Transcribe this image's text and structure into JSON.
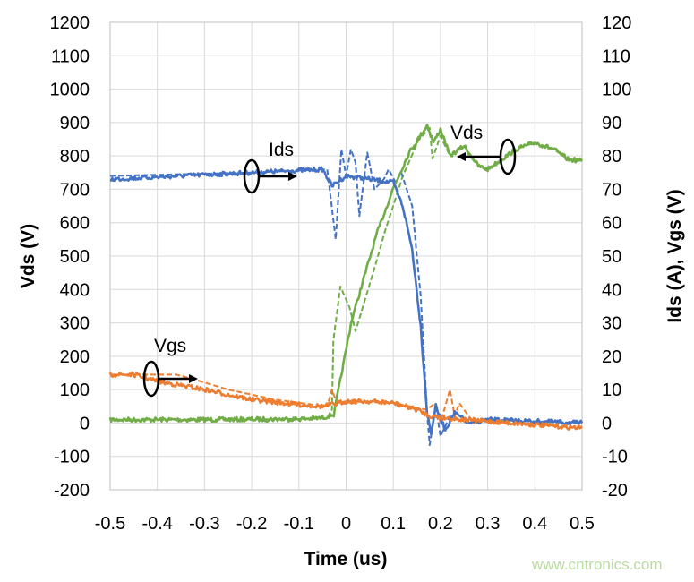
{
  "chart_data": {
    "type": "line",
    "title": "",
    "xlabel": "Time (us)",
    "ylabel": "Vds (V)",
    "y2label": "Ids (A), Vgs (V)",
    "xlim": [
      -0.5,
      0.5
    ],
    "ylim": [
      -200,
      1200
    ],
    "y2lim": [
      -20,
      120
    ],
    "grid": true,
    "legend": "none",
    "x_ticks": [
      "-0.5",
      "-0.4",
      "-0.3",
      "-0.2",
      "-0.1",
      "0",
      "0.1",
      "0.2",
      "0.3",
      "0.4",
      "0.5"
    ],
    "y_ticks": [
      "-200",
      "-100",
      "0",
      "100",
      "200",
      "300",
      "400",
      "500",
      "600",
      "700",
      "800",
      "900",
      "1000",
      "1100",
      "1200"
    ],
    "y2_ticks": [
      "-20",
      "-10",
      "0",
      "10",
      "20",
      "30",
      "40",
      "50",
      "60",
      "70",
      "80",
      "90",
      "100",
      "110",
      "120"
    ],
    "colors": {
      "Ids": "#4472C4",
      "Vgs": "#ED7D31",
      "Vds": "#70AD47"
    },
    "series": [
      {
        "name": "Vds",
        "axis": "left",
        "style": "solid",
        "color": "#70AD47",
        "x": [
          -0.5,
          -0.3,
          -0.1,
          -0.05,
          -0.03,
          -0.026,
          0.012,
          0.064,
          0.1,
          0.134,
          0.172,
          0.185,
          0.2,
          0.22,
          0.25,
          0.28,
          0.3,
          0.33,
          0.36,
          0.4,
          0.44,
          0.47,
          0.5
        ],
        "y": [
          10,
          10,
          12,
          15,
          25,
          25,
          309,
          562,
          704,
          811,
          892,
          840,
          880,
          800,
          830,
          770,
          760,
          790,
          820,
          840,
          820,
          790,
          785
        ]
      },
      {
        "name": "Vds",
        "axis": "left",
        "style": "dashed",
        "color": "#70AD47",
        "x": [
          -0.5,
          -0.3,
          -0.1,
          -0.04,
          -0.03,
          -0.027,
          -0.012,
          0.007,
          0.02,
          0.058,
          0.083,
          0.12,
          0.153,
          0.177,
          0.183,
          0.2,
          0.22,
          0.25,
          0.28,
          0.3,
          0.33,
          0.36,
          0.4,
          0.44,
          0.47,
          0.5
        ],
        "y": [
          10,
          10,
          12,
          15,
          40,
          248,
          409,
          347,
          275,
          454,
          577,
          739,
          846,
          884,
          792,
          860,
          800,
          830,
          770,
          760,
          790,
          820,
          840,
          820,
          790,
          785
        ]
      },
      {
        "name": "Ids",
        "axis": "right",
        "style": "solid",
        "color": "#4472C4",
        "x": [
          -0.5,
          -0.2,
          -0.05,
          -0.03,
          0.0,
          0.05,
          0.1,
          0.12,
          0.14,
          0.158,
          0.172,
          0.18,
          0.19,
          0.21,
          0.23,
          0.26,
          0.3,
          0.5
        ],
        "y": [
          73,
          75,
          76,
          71,
          74,
          73,
          72,
          65,
          52,
          29,
          2.5,
          -3,
          5,
          -2,
          3,
          0,
          1,
          0
        ]
      },
      {
        "name": "Ids",
        "axis": "right",
        "style": "dashed",
        "color": "#4472C4",
        "x": [
          -0.5,
          -0.2,
          -0.04,
          -0.022,
          -0.01,
          0.0,
          0.01,
          0.02,
          0.028,
          0.045,
          0.06,
          0.08,
          0.09,
          0.105,
          0.117,
          0.14,
          0.158,
          0.172,
          0.177,
          0.19,
          0.2,
          0.22,
          0.26,
          0.3,
          0.5
        ],
        "y": [
          74,
          75,
          76,
          55,
          82,
          74,
          82,
          78,
          62,
          81,
          70,
          73,
          76,
          72,
          75,
          65,
          38,
          2.5,
          -6.6,
          5,
          -4,
          2,
          0,
          1,
          0
        ]
      },
      {
        "name": "Vgs",
        "axis": "right",
        "style": "solid",
        "color": "#ED7D31",
        "x": [
          -0.5,
          -0.45,
          -0.4,
          -0.3,
          -0.2,
          -0.1,
          -0.05,
          -0.03,
          0.0,
          0.05,
          0.1,
          0.15,
          0.18,
          0.25,
          0.3,
          0.4,
          0.5
        ],
        "y": [
          14.5,
          14.5,
          12.5,
          10,
          7,
          5.5,
          5,
          5.5,
          6.5,
          6.5,
          6,
          4,
          2,
          1,
          0.5,
          -0.5,
          -1.5
        ]
      },
      {
        "name": "Vgs",
        "axis": "right",
        "style": "dashed",
        "color": "#ED7D31",
        "x": [
          -0.5,
          -0.45,
          -0.36,
          -0.32,
          -0.25,
          -0.15,
          -0.07,
          -0.04,
          -0.03,
          -0.02,
          0.0,
          0.1,
          0.17,
          0.19,
          0.2,
          0.22,
          0.23,
          0.24,
          0.27,
          0.3,
          0.45,
          0.5
        ],
        "y": [
          14.5,
          14.5,
          14.5,
          13,
          10,
          7,
          5.5,
          5,
          10,
          6,
          6.5,
          6,
          4,
          6,
          0,
          10,
          2,
          6,
          0,
          1,
          -1,
          -1.5
        ]
      }
    ],
    "annotations": {
      "ids": "Ids",
      "vds": "Vds",
      "vgs": "Vgs"
    }
  },
  "watermark": "www.cntronics.com"
}
